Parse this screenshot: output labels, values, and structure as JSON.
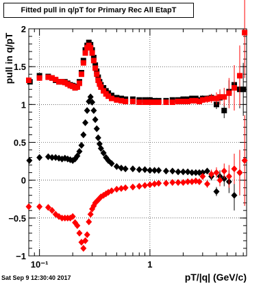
{
  "stamp": "Sat Sep  9 12:30:40 2017",
  "chart_data": {
    "type": "scatter",
    "title": "Fitted pull in q/pT for Primary Rec All EtapT",
    "xlabel": "pT/|q| (GeV/c)",
    "ylabel": "pull in q/pT",
    "xscale": "log",
    "xlim": [
      0.08,
      7.5
    ],
    "ylim": [
      -1,
      2
    ],
    "yticks": [
      -1,
      -0.5,
      0,
      0.5,
      1,
      1.5,
      2
    ],
    "ytick_labels": [
      "−1",
      "−0.5",
      "0",
      "0.5",
      "1",
      "1.5",
      "2"
    ],
    "xticks": [
      0.1,
      1
    ],
    "xtick_labels": [
      "10⁻¹",
      "1"
    ],
    "grid": true,
    "series": [
      {
        "marker": "square",
        "color": "#000000",
        "x": [
          0.082,
          0.1,
          0.12,
          0.13,
          0.14,
          0.15,
          0.16,
          0.17,
          0.18,
          0.19,
          0.2,
          0.21,
          0.22,
          0.23,
          0.24,
          0.25,
          0.26,
          0.27,
          0.28,
          0.29,
          0.3,
          0.31,
          0.32,
          0.33,
          0.34,
          0.35,
          0.36,
          0.38,
          0.4,
          0.42,
          0.45,
          0.5,
          0.55,
          0.6,
          0.7,
          0.8,
          0.9,
          1.0,
          1.1,
          1.2,
          1.4,
          1.6,
          1.8,
          2.0,
          2.2,
          2.4,
          2.6,
          2.8,
          3.0,
          3.3,
          3.6,
          4.0,
          4.3,
          4.7,
          5.2,
          5.8,
          6.5,
          7.0
        ],
        "y": [
          1.3,
          1.38,
          1.37,
          1.35,
          1.32,
          1.3,
          1.3,
          1.3,
          1.28,
          1.26,
          1.25,
          1.22,
          1.24,
          1.3,
          1.42,
          1.58,
          1.72,
          1.78,
          1.82,
          1.79,
          1.72,
          1.62,
          1.52,
          1.44,
          1.36,
          1.3,
          1.26,
          1.22,
          1.18,
          1.15,
          1.12,
          1.09,
          1.08,
          1.07,
          1.07,
          1.06,
          1.06,
          1.06,
          1.05,
          1.05,
          1.05,
          1.06,
          1.06,
          1.07,
          1.07,
          1.08,
          1.08,
          1.06,
          1.08,
          1.08,
          1.09,
          1.0,
          1.09,
          0.92,
          1.17,
          1.26,
          1.2,
          1.2
        ],
        "err": [
          0.03,
          0.02,
          0.02,
          0.02,
          0.02,
          0.02,
          0.02,
          0.02,
          0.02,
          0.02,
          0.02,
          0.02,
          0.02,
          0.02,
          0.02,
          0.02,
          0.02,
          0.02,
          0.02,
          0.02,
          0.02,
          0.02,
          0.02,
          0.02,
          0.02,
          0.02,
          0.02,
          0.02,
          0.02,
          0.02,
          0.02,
          0.02,
          0.02,
          0.02,
          0.02,
          0.02,
          0.02,
          0.02,
          0.02,
          0.02,
          0.02,
          0.02,
          0.03,
          0.03,
          0.03,
          0.03,
          0.03,
          0.03,
          0.04,
          0.04,
          0.05,
          0.06,
          0.08,
          0.1,
          0.15,
          0.2,
          0.25,
          0.35
        ]
      },
      {
        "marker": "square",
        "color": "#ff0000",
        "x": [
          0.08,
          0.1,
          0.12,
          0.13,
          0.14,
          0.15,
          0.16,
          0.17,
          0.18,
          0.19,
          0.2,
          0.21,
          0.22,
          0.23,
          0.24,
          0.25,
          0.26,
          0.27,
          0.28,
          0.29,
          0.3,
          0.31,
          0.32,
          0.33,
          0.34,
          0.35,
          0.36,
          0.38,
          0.4,
          0.42,
          0.45,
          0.5,
          0.55,
          0.6,
          0.7,
          0.8,
          0.9,
          1.0,
          1.1,
          1.2,
          1.4,
          1.6,
          1.8,
          2.0,
          2.2,
          2.4,
          2.6,
          2.8,
          3.0,
          3.3,
          3.6,
          4.0,
          4.3,
          4.7,
          5.2,
          5.8,
          6.5,
          7.2
        ],
        "y": [
          1.32,
          1.35,
          1.36,
          1.35,
          1.33,
          1.3,
          1.3,
          1.29,
          1.27,
          1.25,
          1.24,
          1.22,
          1.23,
          1.28,
          1.4,
          1.55,
          1.68,
          1.75,
          1.78,
          1.75,
          1.68,
          1.58,
          1.48,
          1.4,
          1.32,
          1.27,
          1.23,
          1.18,
          1.14,
          1.11,
          1.08,
          1.06,
          1.05,
          1.04,
          1.04,
          1.03,
          1.03,
          1.03,
          1.03,
          1.03,
          1.03,
          1.03,
          1.04,
          1.04,
          1.04,
          1.05,
          1.05,
          1.04,
          1.06,
          1.07,
          1.08,
          1.08,
          1.1,
          1.1,
          1.15,
          1.22,
          1.38,
          1.95
        ],
        "err": [
          0.02,
          0.02,
          0.02,
          0.02,
          0.02,
          0.02,
          0.02,
          0.02,
          0.02,
          0.02,
          0.02,
          0.02,
          0.02,
          0.02,
          0.02,
          0.02,
          0.02,
          0.02,
          0.02,
          0.02,
          0.02,
          0.02,
          0.02,
          0.02,
          0.02,
          0.02,
          0.02,
          0.02,
          0.02,
          0.02,
          0.02,
          0.02,
          0.02,
          0.02,
          0.02,
          0.02,
          0.02,
          0.02,
          0.02,
          0.02,
          0.02,
          0.02,
          0.02,
          0.03,
          0.03,
          0.03,
          0.03,
          0.03,
          0.04,
          0.05,
          0.06,
          0.08,
          0.1,
          0.12,
          0.2,
          0.3,
          0.4,
          0.6
        ]
      },
      {
        "marker": "diamond",
        "color": "#000000",
        "x": [
          0.081,
          0.1,
          0.12,
          0.13,
          0.14,
          0.15,
          0.16,
          0.17,
          0.18,
          0.19,
          0.2,
          0.21,
          0.22,
          0.23,
          0.24,
          0.25,
          0.26,
          0.27,
          0.28,
          0.29,
          0.3,
          0.31,
          0.32,
          0.33,
          0.34,
          0.35,
          0.36,
          0.38,
          0.4,
          0.42,
          0.45,
          0.5,
          0.55,
          0.6,
          0.7,
          0.8,
          0.9,
          1.0,
          1.1,
          1.2,
          1.4,
          1.6,
          1.8,
          2.0,
          2.2,
          2.4,
          2.6,
          2.8,
          3.0,
          3.3,
          3.6,
          4.0,
          4.3,
          4.7,
          5.2,
          5.8,
          6.5
        ],
        "y": [
          0.26,
          0.3,
          0.31,
          0.3,
          0.3,
          0.29,
          0.28,
          0.29,
          0.28,
          0.27,
          0.26,
          0.28,
          0.32,
          0.38,
          0.46,
          0.6,
          0.76,
          0.92,
          1.04,
          1.1,
          1.03,
          0.92,
          0.8,
          0.68,
          0.56,
          0.48,
          0.42,
          0.36,
          0.3,
          0.26,
          0.22,
          0.18,
          0.16,
          0.15,
          0.15,
          0.14,
          0.14,
          0.13,
          0.13,
          0.13,
          0.12,
          0.12,
          0.11,
          0.11,
          0.11,
          0.1,
          0.1,
          0.1,
          0.1,
          0.12,
          0.05,
          -0.15,
          0.05,
          0.02,
          -0.02,
          -0.2,
          0.1
        ],
        "err": [
          0.02,
          0.02,
          0.02,
          0.02,
          0.02,
          0.02,
          0.02,
          0.02,
          0.02,
          0.02,
          0.02,
          0.02,
          0.02,
          0.02,
          0.02,
          0.02,
          0.02,
          0.02,
          0.02,
          0.02,
          0.02,
          0.02,
          0.02,
          0.02,
          0.02,
          0.02,
          0.02,
          0.02,
          0.02,
          0.02,
          0.02,
          0.02,
          0.02,
          0.02,
          0.02,
          0.02,
          0.02,
          0.02,
          0.02,
          0.02,
          0.02,
          0.02,
          0.02,
          0.02,
          0.02,
          0.02,
          0.03,
          0.03,
          0.03,
          0.04,
          0.05,
          0.06,
          0.08,
          0.1,
          0.15,
          0.2,
          0.3
        ]
      },
      {
        "marker": "diamond",
        "color": "#ff0000",
        "x": [
          0.08,
          0.1,
          0.12,
          0.13,
          0.14,
          0.15,
          0.16,
          0.17,
          0.18,
          0.19,
          0.2,
          0.21,
          0.22,
          0.23,
          0.24,
          0.25,
          0.26,
          0.27,
          0.28,
          0.29,
          0.3,
          0.31,
          0.32,
          0.33,
          0.34,
          0.35,
          0.36,
          0.38,
          0.4,
          0.42,
          0.45,
          0.5,
          0.55,
          0.6,
          0.7,
          0.8,
          0.9,
          1.0,
          1.1,
          1.2,
          1.4,
          1.6,
          1.8,
          2.0,
          2.2,
          2.4,
          2.6,
          2.8,
          3.0,
          3.3,
          3.6,
          4.0,
          4.3,
          4.7,
          5.2,
          5.8,
          6.5,
          7.2
        ],
        "y": [
          -0.35,
          -0.35,
          -0.36,
          -0.4,
          -0.45,
          -0.48,
          -0.5,
          -0.5,
          -0.5,
          -0.5,
          -0.48,
          -0.56,
          -0.6,
          -0.7,
          -0.82,
          -0.9,
          -0.8,
          -0.72,
          -0.55,
          -0.45,
          -0.38,
          -0.34,
          -0.3,
          -0.28,
          -0.26,
          -0.24,
          -0.22,
          -0.2,
          -0.18,
          -0.16,
          -0.14,
          -0.12,
          -0.11,
          -0.1,
          -0.09,
          -0.08,
          -0.07,
          -0.06,
          -0.05,
          -0.04,
          -0.04,
          -0.03,
          -0.03,
          -0.03,
          -0.02,
          -0.02,
          -0.01,
          -0.02,
          0.05,
          -0.05,
          0.08,
          0.1,
          0.0,
          0.12,
          0.05,
          0.15,
          0.1,
          0.26
        ],
        "err": [
          0.03,
          0.02,
          0.02,
          0.02,
          0.02,
          0.02,
          0.02,
          0.02,
          0.02,
          0.02,
          0.02,
          0.02,
          0.02,
          0.02,
          0.02,
          0.02,
          0.02,
          0.02,
          0.02,
          0.02,
          0.02,
          0.02,
          0.02,
          0.02,
          0.02,
          0.02,
          0.02,
          0.02,
          0.02,
          0.02,
          0.02,
          0.02,
          0.02,
          0.02,
          0.02,
          0.02,
          0.02,
          0.02,
          0.02,
          0.02,
          0.02,
          0.02,
          0.02,
          0.02,
          0.03,
          0.03,
          0.03,
          0.03,
          0.04,
          0.05,
          0.06,
          0.07,
          0.08,
          0.1,
          0.15,
          0.2,
          0.3,
          0.6
        ]
      }
    ]
  }
}
